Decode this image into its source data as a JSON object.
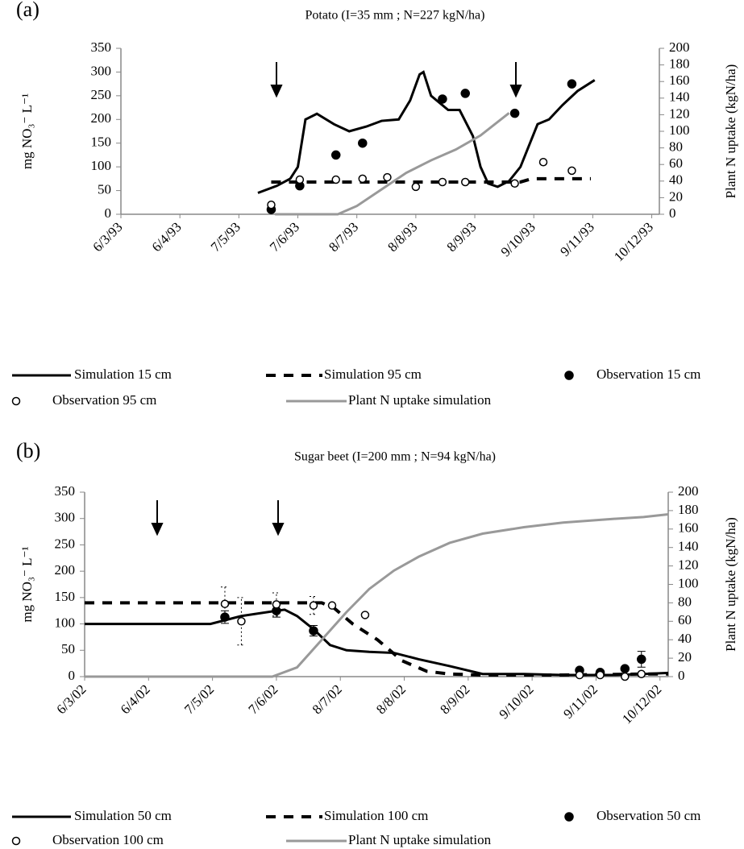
{
  "chart_data": [
    {
      "type": "line",
      "panel_label": "(a)",
      "title": "Potato (I=35 mm ; N=227 kgN/ha)",
      "ylabel": "mg NO₃⁻ L⁻¹",
      "y2label": "Plant N uptake (kgN/ha)",
      "xticks": [
        "6/3/93",
        "6/4/93",
        "7/5/93",
        "7/6/93",
        "8/7/93",
        "8/8/93",
        "8/9/93",
        "9/10/93",
        "9/11/93",
        "10/12/93"
      ],
      "xlim": [
        "6/3/93",
        "14/12/93"
      ],
      "ylim": [
        0,
        350
      ],
      "yticks": [
        0,
        50,
        100,
        150,
        200,
        250,
        300,
        350
      ],
      "y2lim": [
        0,
        200
      ],
      "y2ticks": [
        0,
        20,
        40,
        60,
        80,
        100,
        120,
        140,
        160,
        180,
        200
      ],
      "series": [
        {
          "name": "Simulation 15 cm",
          "style": "line",
          "color": "#000000",
          "x": [
            "17/5/93",
            "27/5/93",
            "3/6/93",
            "7/6/93",
            "11/6/93",
            "17/6/93",
            "26/6/93",
            "4/7/93",
            "13/7/93",
            "21/7/93",
            "30/7/93",
            "5/8/93",
            "10/8/93",
            "12/8/93",
            "16/8/93",
            "25/8/93",
            "31/8/93",
            "7/9/93",
            "11/9/93",
            "15/9/93",
            "20/9/93",
            "26/9/93",
            "2/10/93",
            "11/10/93",
            "17/10/93",
            "24/10/93",
            "1/11/93",
            "10/11/93"
          ],
          "values": [
            45,
            60,
            75,
            100,
            200,
            212,
            190,
            175,
            185,
            197,
            200,
            240,
            295,
            300,
            250,
            220,
            220,
            165,
            100,
            65,
            58,
            70,
            100,
            190,
            200,
            230,
            260,
            283
          ]
        },
        {
          "name": "Simulation 95 cm",
          "style": "dash",
          "color": "#000000",
          "x": [
            "24/5/93",
            "2/10/93",
            "8/10/93",
            "8/11/93"
          ],
          "values": [
            68,
            68,
            75,
            75
          ]
        },
        {
          "name": "Observation 15 cm",
          "style": "dot-filled",
          "color": "#000000",
          "x": [
            "24/5/93",
            "8/6/93",
            "27/6/93",
            "11/7/93",
            "22/8/93",
            "3/9/93",
            "29/9/93",
            "29/10/93"
          ],
          "values": [
            10,
            60,
            125,
            150,
            243,
            255,
            213,
            275
          ]
        },
        {
          "name": "Observation 95 cm",
          "style": "dot-open",
          "color": "#000000",
          "x": [
            "24/5/93",
            "8/6/93",
            "27/6/93",
            "11/7/93",
            "24/7/93",
            "8/8/93",
            "22/8/93",
            "3/9/93",
            "29/9/93",
            "14/10/93",
            "29/10/93"
          ],
          "values": [
            20,
            73,
            73,
            75,
            78,
            58,
            68,
            68,
            65,
            110,
            92
          ]
        },
        {
          "name": "Plant N uptake simulation",
          "style": "line",
          "color": "#999999",
          "axis": "y2",
          "x": [
            "26/5/93",
            "28/6/93",
            "8/7/93",
            "21/7/93",
            "3/8/93",
            "16/8/93",
            "29/8/93",
            "11/9/93",
            "26/9/93"
          ],
          "values": [
            0,
            0,
            10,
            30,
            50,
            65,
            78,
            95,
            122
          ]
        }
      ]
    },
    {
      "type": "line",
      "panel_label": "(b)",
      "title": "Sugar beet (I=200 mm ; N=94 kgN/ha)",
      "ylabel": "mg NO₃⁻ L⁻¹",
      "y2label": "Plant N uptake (kgN/ha)",
      "xticks": [
        "6/3/02",
        "6/4/02",
        "7/5/02",
        "7/6/02",
        "8/7/02",
        "8/8/02",
        "8/9/02",
        "9/10/02",
        "9/11/02",
        "10/12/02"
      ],
      "xlim": [
        "6/3/02",
        "14/12/02"
      ],
      "ylim": [
        0,
        350
      ],
      "yticks": [
        0,
        50,
        100,
        150,
        200,
        250,
        300,
        350
      ],
      "y2lim": [
        0,
        200
      ],
      "y2ticks": [
        0,
        20,
        40,
        60,
        80,
        100,
        120,
        140,
        160,
        180,
        200
      ],
      "series": [
        {
          "name": "Simulation 50 cm",
          "style": "line",
          "color": "#000000",
          "x": [
            "6/3/02",
            "6/5/02",
            "21/5/02",
            "7/6/02",
            "11/6/02",
            "17/6/02",
            "25/6/02",
            "3/7/02",
            "11/7/02",
            "22/7/02",
            "3/8/02",
            "15/8/02",
            "30/8/02",
            "15/9/02",
            "5/10/02",
            "24/10/02",
            "17/11/02",
            "2/12/02",
            "14/12/02"
          ],
          "values": [
            100,
            100,
            115,
            125,
            127,
            115,
            90,
            60,
            50,
            47,
            45,
            33,
            20,
            5,
            5,
            3,
            3,
            5,
            7
          ]
        },
        {
          "name": "Simulation 100 cm",
          "style": "dash",
          "color": "#000000",
          "x": [
            "6/3/02",
            "29/6/02",
            "5/7/02",
            "14/7/02",
            "26/7/02",
            "7/8/02",
            "19/8/02",
            "30/8/02",
            "15/9/02",
            "24/10/02",
            "2/12/02",
            "14/12/02"
          ],
          "values": [
            140,
            140,
            130,
            100,
            70,
            30,
            10,
            5,
            3,
            3,
            5,
            5
          ]
        },
        {
          "name": "Observation 50 cm",
          "style": "dot-filled",
          "color": "#000000",
          "x": [
            "13/5/02",
            "7/6/02",
            "25/6/02",
            "1/11/02",
            "11/11/02",
            "23/11/02",
            "1/12/02"
          ],
          "values": [
            113,
            125,
            87,
            12,
            8,
            15,
            33
          ],
          "errors": [
            12,
            12,
            10,
            null,
            null,
            null,
            15
          ]
        },
        {
          "name": "Observation 100 cm",
          "style": "dot-open",
          "color": "#000000",
          "x": [
            "13/5/02",
            "21/5/02",
            "7/6/02",
            "25/6/02",
            "4/7/02",
            "20/7/02",
            "1/11/02",
            "11/11/02",
            "23/11/02",
            "1/12/02"
          ],
          "values": [
            138,
            105,
            137,
            135,
            135,
            117,
            3,
            3,
            0,
            5
          ],
          "errors": [
            32,
            45,
            22,
            17,
            null,
            null,
            null,
            null,
            null,
            null
          ]
        },
        {
          "name": "Plant N uptake simulation",
          "style": "line",
          "color": "#999999",
          "axis": "y2",
          "x": [
            "6/3/02",
            "5/6/02",
            "17/6/02",
            "29/6/02",
            "11/7/02",
            "22/7/02",
            "3/8/02",
            "15/8/02",
            "30/8/02",
            "15/9/02",
            "5/10/02",
            "24/10/02",
            "17/11/02",
            "2/12/02",
            "14/12/02"
          ],
          "values": [
            0,
            0,
            10,
            40,
            70,
            95,
            115,
            130,
            145,
            155,
            162,
            167,
            171,
            173,
            176
          ]
        }
      ]
    }
  ]
}
